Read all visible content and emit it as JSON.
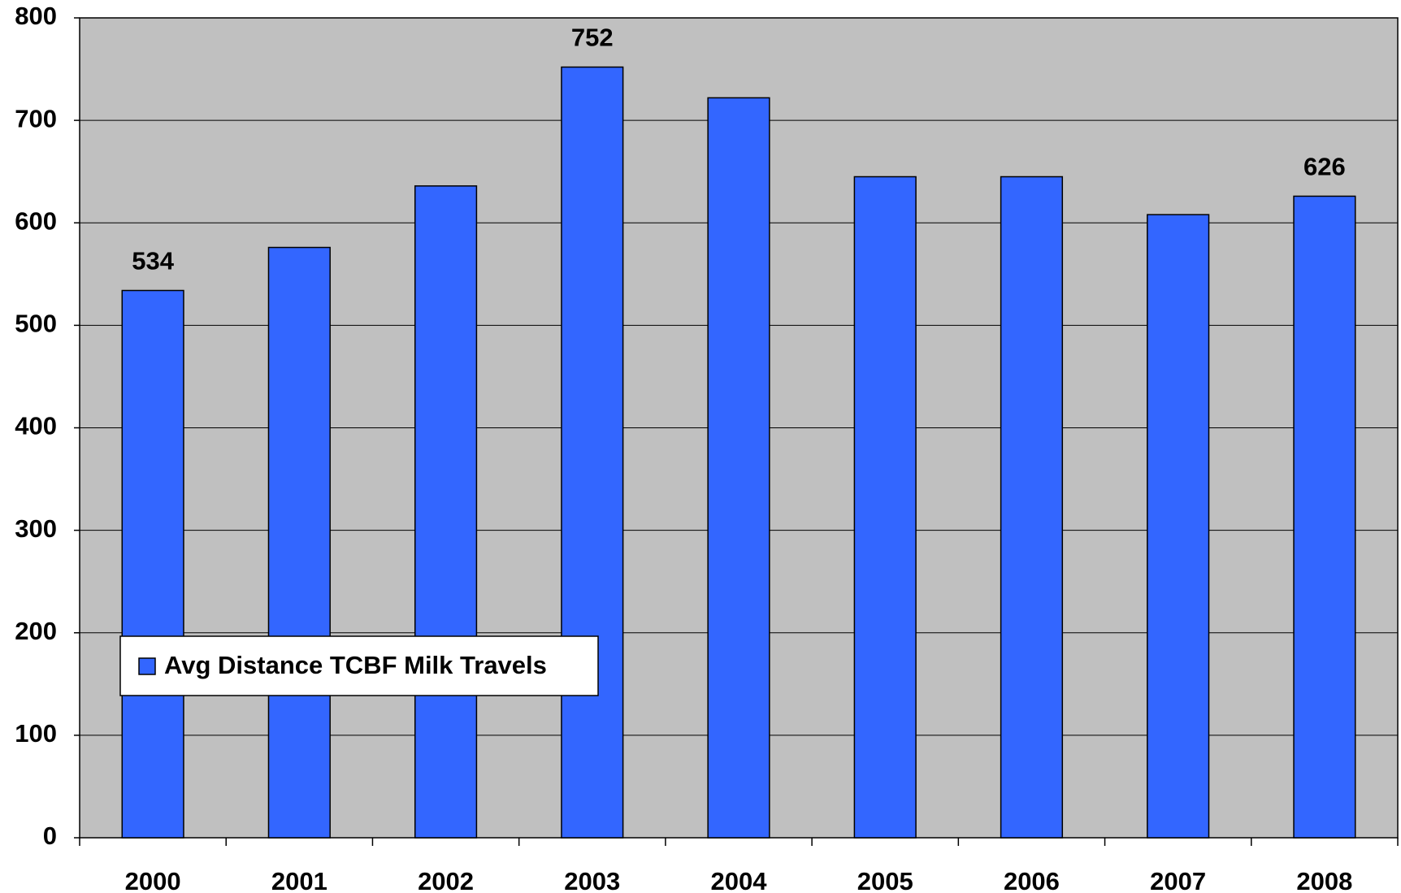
{
  "chart_data": {
    "type": "bar",
    "categories": [
      "2000",
      "2001",
      "2002",
      "2003",
      "2004",
      "2005",
      "2006",
      "2007",
      "2008"
    ],
    "series": [
      {
        "name": "Avg Distance TCBF Milk Travels",
        "color": "#3366ff",
        "values": [
          534,
          576,
          636,
          752,
          722,
          645,
          645,
          608,
          626
        ],
        "value_labels": [
          "534",
          null,
          null,
          "752",
          null,
          null,
          null,
          null,
          "626"
        ]
      }
    ],
    "ylim": [
      0,
      800
    ],
    "yticks": [
      0,
      100,
      200,
      300,
      400,
      500,
      600,
      700,
      800
    ],
    "grid": true,
    "background": "#c0c0c0",
    "legend": "lower left"
  }
}
